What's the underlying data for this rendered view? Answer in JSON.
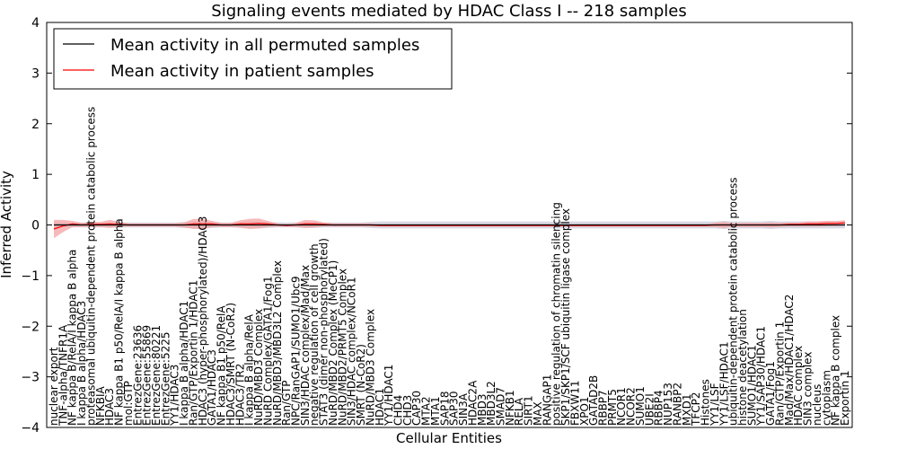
{
  "chart_data": {
    "type": "line",
    "title": "Signaling events mediated by HDAC Class I -- 218 samples",
    "xlabel": "Cellular Entities",
    "ylabel": "Inferred Activity",
    "ylim": [
      -4,
      4
    ],
    "yticks": [
      "4",
      "3",
      "2",
      "1",
      "0",
      "−1",
      "−2",
      "−3",
      "−4"
    ],
    "grid": false,
    "legend_position": "top-left",
    "colors": {
      "permuted": "#000000",
      "patient": "#ff0000",
      "patient_band": "#f4a3a3",
      "permuted_band": "#c8c8d8"
    },
    "categories": [
      "nuclear export",
      "TNF-alpha/TNFR1A",
      "NF kappa B/RelA/I kappa B alpha",
      "I kappa B alpha/HDAC3",
      "proteasomal ubiquitin-dependent protein catabolic process",
      "NFKBIA",
      "HDAC3",
      "NF kappa B1 p50/RelA/I kappa B alpha",
      "mol:GTP",
      "EntrezGene:23636",
      "EntrezGene:55869",
      "EntrezGene:80221",
      "EntrezGene:5225",
      "YY1/HDAC3",
      "I kappa B alpha/HDAC1",
      "Ran/GTP/Exportin 1/HDAC1",
      "HDAC3 (hyper-phosphorylated)/HDAC3",
      "GATA1/HDAC3",
      "NF kappa B1 p50/RelA",
      "HDAC3/SMRT (N-CoR2)",
      "HDAC3/TR2",
      "I kappa B alpha/RelA",
      "NuRD/MBD3 Complex",
      "NuRD Complex/GATA1/Fog1",
      "NuRD/MBD3/MBD3L2 Complex",
      "Ran/GTP",
      "NPC/RanGAP1/SUMO1/Ubc9",
      "SIN3/HDAC complex/Mad/Max",
      "negative regulation of cell growth",
      "STAT3 (dimer non-phosphorylated)",
      "NuRD/MBD2 Complex (MeCP1)",
      "NuRD/MBD2/PRMT5 Complex",
      "SIN3/HDAC complex/NCoR1",
      "SMRT (N-CoR2)",
      "NuRD/MBD3 Complex",
      "HDAC1",
      "YY1/HDAC1",
      "CHD4",
      "CHD3",
      "CAP30",
      "MTA2",
      "MTA1",
      "SAP18",
      "SAP30",
      "SIN3A",
      "HDAC2A",
      "MBD3",
      "MBD3L2",
      "SMAD7",
      "NFKB1",
      "RELA",
      "SIRT1",
      "MAX",
      "RANGAP1",
      "positive regulation of chromatin silencing",
      "SKP1/SKP1/SCF ubiquitin ligase complex",
      "FBXW11",
      "XPO1",
      "GATAD2B",
      "RBBP7",
      "PRMT5",
      "NCOR1",
      "NCOR2",
      "SUMO1",
      "UBE2I",
      "RBBP4",
      "NUP153",
      "RANBP2",
      "MXD1",
      "TFCP2",
      "Histones",
      "YY1/LSF",
      "YY1/LSF/HDAC1",
      "ubiquitin-dependent protein catabolic process",
      "histone deacetylation",
      "SUMO1/HDAC1",
      "YY1/SAP30/HDAC1",
      "GATA1/Fog1",
      "Ran/GTP/Exportin 1",
      "Mad/Max/HDAC1/HDAC2",
      "HDAC complex",
      "SIN3 complex",
      "nucleus",
      "cytoplasm",
      "NF kappa B complex",
      "Exportin 1"
    ],
    "series": [
      {
        "name": "Mean activity in all permuted samples",
        "values": [
          0.0,
          0.0,
          0.0,
          0.0,
          0.0,
          0.0,
          0.0,
          0.0,
          0.0,
          0.0,
          0.0,
          0.0,
          0.0,
          0.0,
          0.0,
          0.0,
          0.0,
          0.0,
          0.0,
          0.0,
          0.0,
          0.0,
          0.0,
          0.0,
          0.0,
          0.0,
          0.0,
          0.0,
          0.0,
          0.0,
          0.0,
          0.0,
          0.0,
          0.0,
          0.0,
          0.0,
          0.0,
          0.0,
          0.0,
          0.0,
          0.0,
          0.0,
          0.0,
          0.0,
          0.0,
          0.0,
          0.0,
          0.0,
          0.0,
          0.0,
          0.0,
          0.0,
          0.0,
          0.0,
          0.0,
          0.0,
          0.0,
          0.0,
          0.0,
          0.0,
          0.0,
          0.0,
          0.0,
          0.0,
          0.0,
          0.0,
          0.0,
          0.0,
          0.0,
          0.0,
          0.0,
          0.0,
          0.0,
          0.0,
          0.0,
          0.0,
          0.0,
          0.0,
          0.0,
          0.0,
          0.0,
          0.0,
          0.0,
          0.0,
          0.0,
          0.0
        ]
      },
      {
        "name": "Mean activity in patient samples",
        "values": [
          -0.08,
          -0.02,
          0.02,
          0.0,
          0.01,
          0.01,
          0.02,
          0.01,
          0.0,
          0.0,
          0.0,
          0.0,
          0.0,
          0.0,
          0.0,
          0.02,
          0.02,
          0.02,
          0.0,
          0.0,
          0.02,
          0.02,
          0.03,
          0.02,
          0.0,
          -0.01,
          0.0,
          0.02,
          0.02,
          0.01,
          0.0,
          0.0,
          0.0,
          0.0,
          0.0,
          -0.01,
          -0.01,
          -0.01,
          -0.01,
          -0.01,
          -0.01,
          -0.01,
          -0.01,
          -0.01,
          -0.01,
          -0.01,
          -0.01,
          -0.01,
          -0.01,
          -0.01,
          -0.01,
          -0.01,
          -0.01,
          -0.01,
          -0.01,
          -0.01,
          -0.01,
          -0.01,
          -0.01,
          -0.01,
          -0.01,
          -0.01,
          -0.01,
          -0.01,
          -0.01,
          -0.01,
          -0.01,
          -0.01,
          -0.01,
          -0.01,
          -0.01,
          0.0,
          0.0,
          0.0,
          0.0,
          0.0,
          0.0,
          0.0,
          0.0,
          0.01,
          0.01,
          0.02,
          0.02,
          0.03,
          0.03,
          0.04
        ]
      }
    ],
    "patient_band_halfwidth": [
      0.18,
      0.12,
      0.06,
      0.04,
      0.05,
      0.05,
      0.08,
      0.05,
      0.03,
      0.03,
      0.03,
      0.03,
      0.03,
      0.03,
      0.05,
      0.1,
      0.1,
      0.06,
      0.04,
      0.04,
      0.07,
      0.1,
      0.1,
      0.06,
      0.03,
      0.02,
      0.04,
      0.08,
      0.07,
      0.04,
      0.03,
      0.03,
      0.03,
      0.03,
      0.03,
      0.02,
      0.02,
      0.02,
      0.02,
      0.02,
      0.02,
      0.02,
      0.02,
      0.02,
      0.02,
      0.02,
      0.02,
      0.02,
      0.02,
      0.02,
      0.02,
      0.02,
      0.02,
      0.02,
      0.02,
      0.02,
      0.02,
      0.02,
      0.02,
      0.02,
      0.02,
      0.02,
      0.02,
      0.02,
      0.02,
      0.02,
      0.02,
      0.02,
      0.02,
      0.02,
      0.02,
      0.04,
      0.06,
      0.03,
      0.04,
      0.04,
      0.04,
      0.05,
      0.04,
      0.04,
      0.04,
      0.05,
      0.05,
      0.05,
      0.05,
      0.05
    ],
    "permuted_band_halfwidth": [
      0.06,
      0.05,
      0.05,
      0.05,
      0.05,
      0.05,
      0.05,
      0.05,
      0.05,
      0.05,
      0.05,
      0.05,
      0.05,
      0.05,
      0.06,
      0.07,
      0.07,
      0.06,
      0.05,
      0.05,
      0.06,
      0.07,
      0.07,
      0.06,
      0.05,
      0.05,
      0.05,
      0.06,
      0.06,
      0.05,
      0.05,
      0.05,
      0.05,
      0.05,
      0.06,
      0.07,
      0.07,
      0.07,
      0.07,
      0.07,
      0.07,
      0.07,
      0.07,
      0.07,
      0.07,
      0.07,
      0.07,
      0.07,
      0.07,
      0.07,
      0.07,
      0.07,
      0.07,
      0.07,
      0.07,
      0.07,
      0.07,
      0.07,
      0.07,
      0.07,
      0.07,
      0.07,
      0.07,
      0.07,
      0.07,
      0.07,
      0.07,
      0.07,
      0.07,
      0.07,
      0.07,
      0.07,
      0.08,
      0.07,
      0.07,
      0.07,
      0.07,
      0.08,
      0.07,
      0.07,
      0.07,
      0.07,
      0.07,
      0.07,
      0.07,
      0.07
    ]
  }
}
